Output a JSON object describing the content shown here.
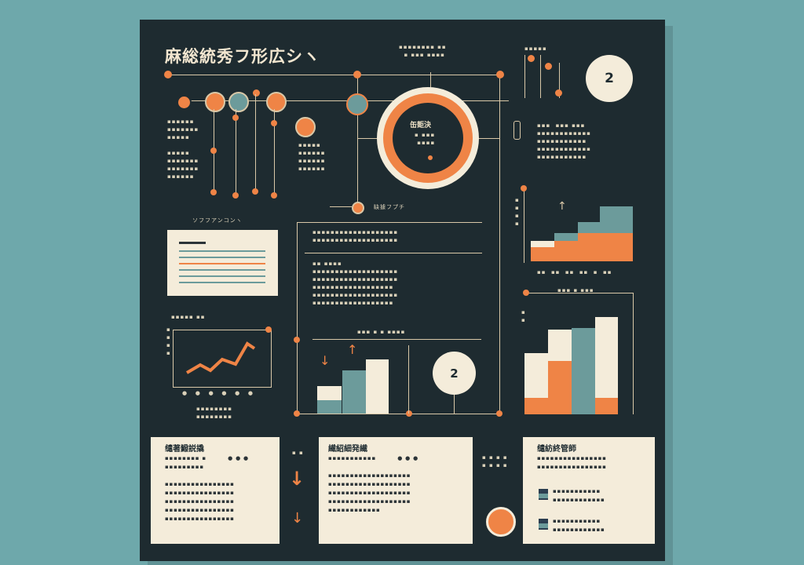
{
  "title": "麻総統秀フ形広シヽ",
  "badges": {
    "top_right": "2",
    "center_chart": "2"
  },
  "donut": {
    "label": "缶壾決"
  },
  "timeline": {
    "caption": "ソフフアンコンヽ",
    "node_caption": "缺據フプチ"
  },
  "panels": {
    "left": {
      "heading": "缱著鱍説撬"
    },
    "middle": {
      "heading": "繊紹細発繊"
    },
    "right": {
      "heading": "缱紡終管師"
    }
  },
  "colors": {
    "orange": "#ef8446",
    "teal": "#6c9b9b",
    "cream": "#f4ecda",
    "navy": "#1e2b30"
  }
}
